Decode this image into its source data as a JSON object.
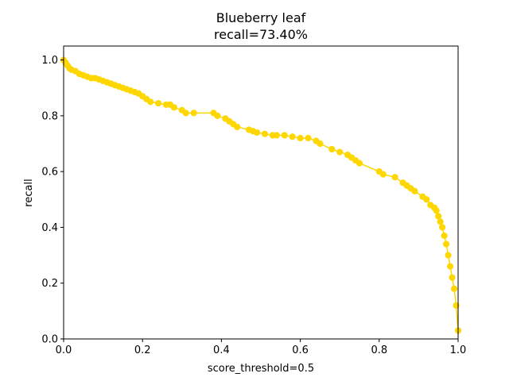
{
  "chart_data": {
    "type": "line",
    "title_line1": "Blueberry leaf",
    "title_line2": "recall=73.40%",
    "xlabel": "score_threshold=0.5",
    "ylabel": "recall",
    "xlim": [
      0.0,
      1.0
    ],
    "ylim": [
      0.0,
      1.05
    ],
    "x_ticks": [
      0.0,
      0.2,
      0.4,
      0.6,
      0.8,
      1.0
    ],
    "x_tick_labels": [
      "0.0",
      "0.2",
      "0.4",
      "0.6",
      "0.8",
      "1.0"
    ],
    "y_ticks": [
      0.0,
      0.2,
      0.4,
      0.6,
      0.8,
      1.0
    ],
    "y_tick_labels": [
      "0.0",
      "0.2",
      "0.4",
      "0.6",
      "0.8",
      "1.0"
    ],
    "grid": false,
    "legend": "none",
    "series": [
      {
        "color": "#ffd700",
        "marker": "circle",
        "x": [
          0.0,
          0.005,
          0.01,
          0.015,
          0.02,
          0.03,
          0.04,
          0.05,
          0.06,
          0.07,
          0.08,
          0.09,
          0.1,
          0.11,
          0.12,
          0.13,
          0.14,
          0.15,
          0.16,
          0.17,
          0.18,
          0.19,
          0.2,
          0.21,
          0.22,
          0.24,
          0.26,
          0.27,
          0.28,
          0.3,
          0.31,
          0.33,
          0.38,
          0.39,
          0.41,
          0.42,
          0.43,
          0.44,
          0.47,
          0.48,
          0.49,
          0.51,
          0.53,
          0.54,
          0.56,
          0.58,
          0.6,
          0.62,
          0.64,
          0.65,
          0.68,
          0.7,
          0.72,
          0.73,
          0.74,
          0.75,
          0.8,
          0.81,
          0.84,
          0.86,
          0.87,
          0.88,
          0.89,
          0.91,
          0.92,
          0.93,
          0.94,
          0.945,
          0.95,
          0.955,
          0.96,
          0.965,
          0.97,
          0.975,
          0.98,
          0.985,
          0.99,
          0.995,
          1.0
        ],
        "y": [
          1.0,
          0.99,
          0.98,
          0.97,
          0.965,
          0.96,
          0.95,
          0.945,
          0.94,
          0.935,
          0.935,
          0.93,
          0.925,
          0.92,
          0.915,
          0.91,
          0.905,
          0.9,
          0.895,
          0.89,
          0.885,
          0.88,
          0.87,
          0.86,
          0.85,
          0.845,
          0.84,
          0.84,
          0.83,
          0.82,
          0.81,
          0.81,
          0.81,
          0.8,
          0.79,
          0.78,
          0.77,
          0.76,
          0.75,
          0.745,
          0.74,
          0.735,
          0.73,
          0.73,
          0.73,
          0.725,
          0.72,
          0.72,
          0.71,
          0.7,
          0.68,
          0.67,
          0.66,
          0.65,
          0.64,
          0.63,
          0.6,
          0.59,
          0.58,
          0.56,
          0.55,
          0.54,
          0.53,
          0.51,
          0.5,
          0.48,
          0.47,
          0.46,
          0.44,
          0.42,
          0.4,
          0.37,
          0.34,
          0.3,
          0.26,
          0.22,
          0.18,
          0.12,
          0.03
        ]
      }
    ]
  }
}
